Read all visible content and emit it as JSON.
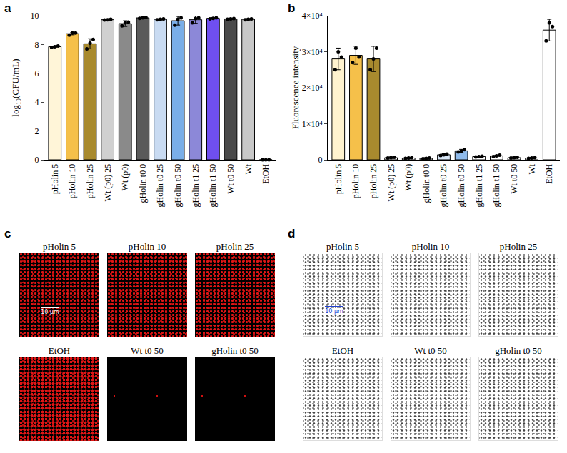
{
  "chart_data": [
    {
      "panel": "a",
      "type": "bar",
      "y_label": "log₁₀(CFU/mL)",
      "categories": [
        "pHolin 5",
        "pHolin 10",
        "pHolin 25",
        "Wt (p0) 25",
        "Wt (p0)",
        "gHolin t0 0",
        "gHolin t0 25",
        "gHolin t0 50",
        "gHolin t1 25",
        "gHolin t1 50",
        "Wt t0 50",
        "Wt",
        "EtOH"
      ],
      "values": [
        7.85,
        8.75,
        8.05,
        9.72,
        9.45,
        9.85,
        9.75,
        9.65,
        9.72,
        9.82,
        9.78,
        9.75,
        0
      ],
      "errors": [
        0.05,
        0.08,
        0.35,
        0.05,
        0.2,
        0.05,
        0.05,
        0.3,
        0.25,
        0.05,
        0.05,
        0.05,
        0
      ],
      "replicates": [
        [
          7.8,
          7.85,
          7.9
        ],
        [
          8.65,
          8.8,
          8.8
        ],
        [
          7.7,
          8.1,
          8.35
        ],
        [
          9.7,
          9.72,
          9.75
        ],
        [
          9.3,
          9.5,
          9.55
        ],
        [
          9.82,
          9.85,
          9.88
        ],
        [
          9.72,
          9.75,
          9.78
        ],
        [
          9.35,
          9.75,
          9.85
        ],
        [
          9.5,
          9.8,
          9.85
        ],
        [
          9.78,
          9.82,
          9.85
        ],
        [
          9.75,
          9.78,
          9.8
        ],
        [
          9.72,
          9.75,
          9.78
        ],
        [
          0,
          0,
          0
        ]
      ],
      "colors": [
        "#fff5d8",
        "#f5c04a",
        "#a88a2e",
        "#d0d0d0",
        "#8a8a8a",
        "#5a5a5a",
        "#c9dbf2",
        "#7aaee8",
        "#8c88d8",
        "#6f4ff0",
        "#4a4a4a",
        "#c8c8c8",
        "#ffffff"
      ],
      "ylim": [
        0,
        10
      ],
      "yticks": [
        0,
        2,
        4,
        6,
        8,
        10
      ],
      "grid": false
    },
    {
      "panel": "b",
      "type": "bar",
      "y_label": "Fluorescence intensity",
      "categories": [
        "pHolin 5",
        "pHolin 10",
        "pHolin 25",
        "Wt (p0) 25",
        "Wt (p0)",
        "gHolin t0 0",
        "gHolin t0 25",
        "gHolin t0 50",
        "gHolin t1 25",
        "gHolin t1 50",
        "Wt t0 50",
        "Wt",
        "EtOH"
      ],
      "values": [
        28000,
        29000,
        28000,
        600,
        500,
        400,
        1400,
        2500,
        900,
        1100,
        600,
        500,
        36000
      ],
      "errors": [
        3000,
        2500,
        3500,
        200,
        200,
        200,
        300,
        400,
        200,
        200,
        200,
        200,
        3000
      ],
      "replicates": [
        [
          25000,
          30000,
          28500
        ],
        [
          27000,
          31000,
          28500
        ],
        [
          25000,
          28000,
          31000
        ],
        [
          500,
          600,
          700
        ],
        [
          400,
          500,
          600
        ],
        [
          300,
          400,
          500
        ],
        [
          1200,
          1400,
          1600
        ],
        [
          2200,
          2500,
          2800
        ],
        [
          800,
          900,
          1000
        ],
        [
          900,
          1100,
          1300
        ],
        [
          500,
          600,
          700
        ],
        [
          400,
          500,
          600
        ],
        [
          33000,
          38000,
          37000
        ]
      ],
      "colors": [
        "#fff3cf",
        "#f5c04a",
        "#a88a2e",
        "#ffffff",
        "#ffffff",
        "#ffffff",
        "#d8e6f6",
        "#8fbbec",
        "#ffffff",
        "#ffffff",
        "#ffffff",
        "#ffffff",
        "#ffffff"
      ],
      "ylim": [
        0,
        40000
      ],
      "yticks": [
        0,
        {
          "value": 10000,
          "label": "1×10⁴"
        },
        {
          "value": 20000,
          "label": "2×10⁴"
        },
        {
          "value": 30000,
          "label": "3×10⁴"
        },
        {
          "value": 40000,
          "label": "4×10⁴"
        }
      ],
      "grid": false
    }
  ],
  "micrographs": [
    {
      "panel": "c",
      "style": "fluorescence",
      "scale_bar": "10 µm",
      "images": [
        {
          "label": "pHolin 5",
          "signal": true
        },
        {
          "label": "pHolin 10",
          "signal": true
        },
        {
          "label": "pHolin 25",
          "signal": true
        },
        {
          "label": "EtOH",
          "signal": true
        },
        {
          "label": "Wt t0 50",
          "signal": false
        },
        {
          "label": "gHolin t0 50",
          "signal": false
        }
      ]
    },
    {
      "panel": "d",
      "style": "brightfield",
      "scale_bar": "10 µm",
      "images": [
        {
          "label": "pHolin 5",
          "signal": true
        },
        {
          "label": "pHolin 10",
          "signal": true
        },
        {
          "label": "pHolin 25",
          "signal": true
        },
        {
          "label": "EtOH",
          "signal": true
        },
        {
          "label": "Wt t0 50",
          "signal": true
        },
        {
          "label": "gHolin t0 50",
          "signal": true
        }
      ]
    }
  ]
}
